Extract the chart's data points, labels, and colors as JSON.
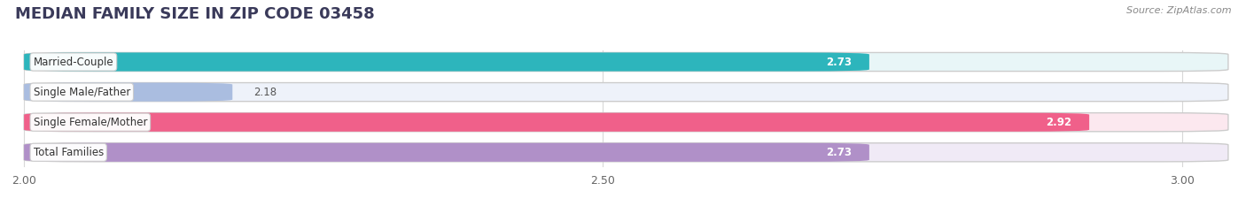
{
  "title": "MEDIAN FAMILY SIZE IN ZIP CODE 03458",
  "source": "Source: ZipAtlas.com",
  "categories": [
    "Married-Couple",
    "Single Male/Father",
    "Single Female/Mother",
    "Total Families"
  ],
  "values": [
    2.73,
    2.18,
    2.92,
    2.73
  ],
  "bar_colors": [
    "#2db5bc",
    "#aabde0",
    "#f0608a",
    "#b090c8"
  ],
  "bar_bg_colors": [
    "#e8f6f7",
    "#eef2fa",
    "#fce8ef",
    "#f0eaf6"
  ],
  "bar_border_colors": [
    "#c8e8ea",
    "#d0daf0",
    "#f0c0d0",
    "#d8c8e8"
  ],
  "value_outside": [
    false,
    true,
    false,
    false
  ],
  "xlim": [
    2.0,
    3.0
  ],
  "xticks": [
    2.0,
    2.5,
    3.0
  ],
  "xtick_labels": [
    "2.00",
    "2.50",
    "3.00"
  ],
  "bar_height": 0.62,
  "label_fontsize": 8.5,
  "value_fontsize": 8.5,
  "title_fontsize": 13,
  "background_color": "#ffffff",
  "grid_color": "#d8d8d8",
  "title_color": "#3a3a5a",
  "source_color": "#888888"
}
